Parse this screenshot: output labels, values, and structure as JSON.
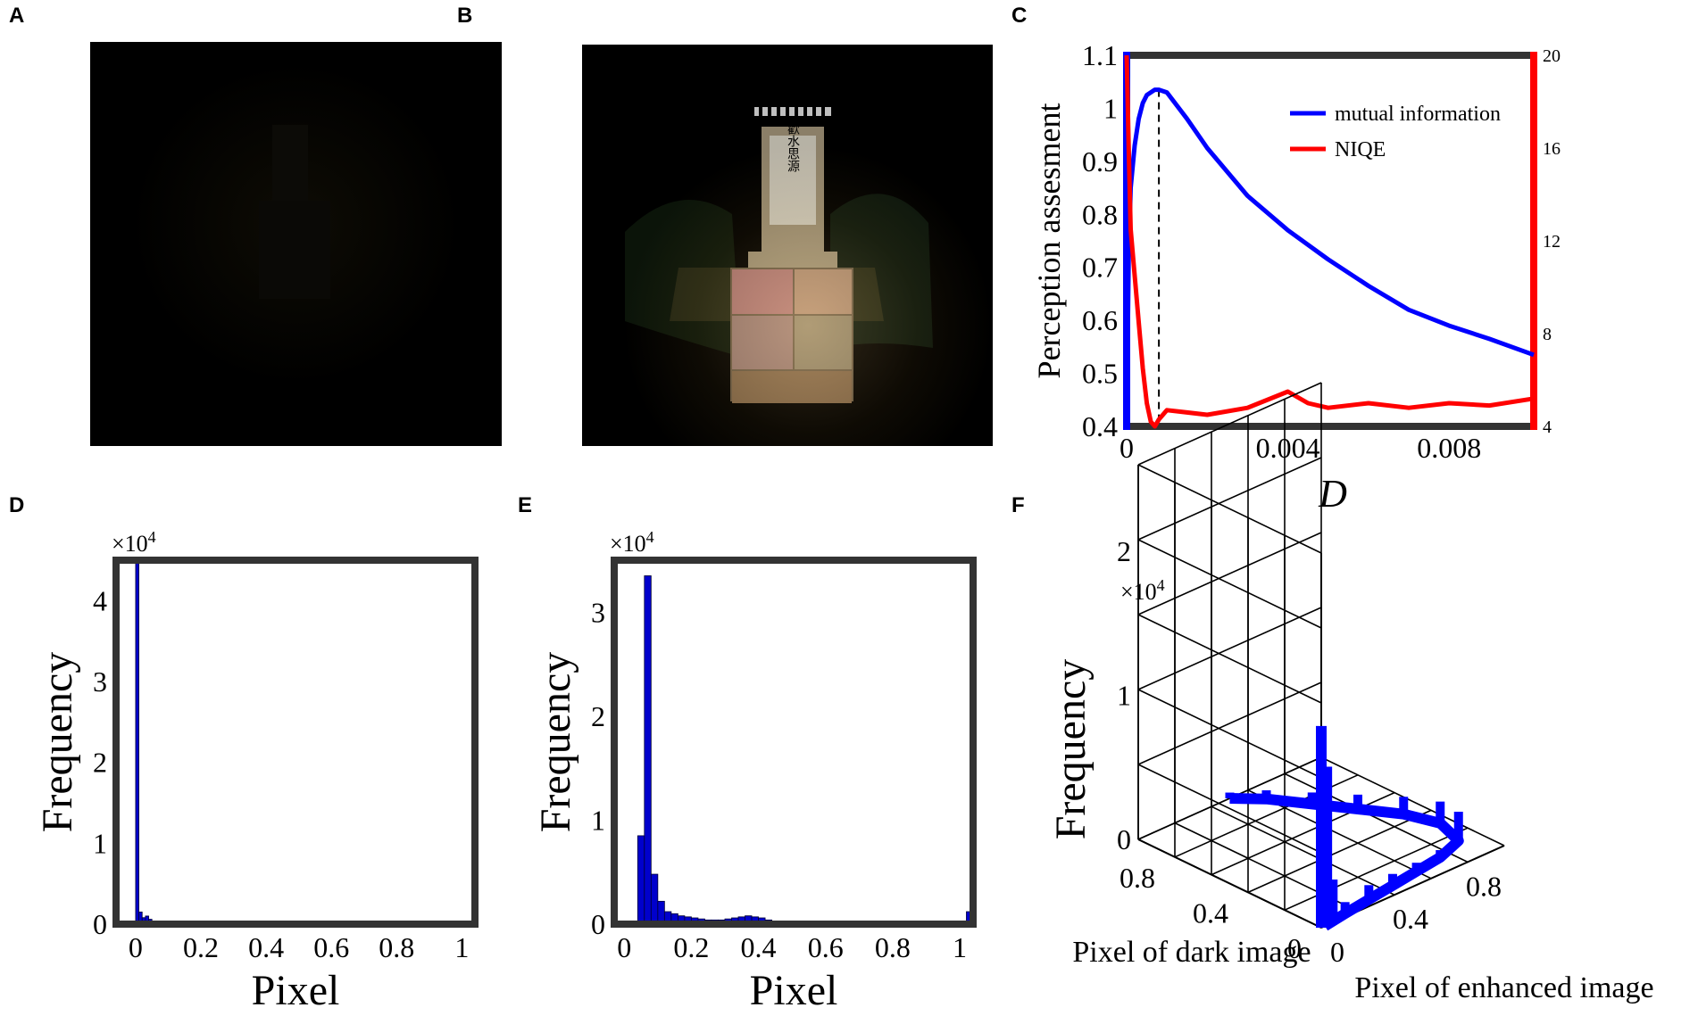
{
  "panels": {
    "a": "A",
    "b": "B",
    "c": "C",
    "d": "D",
    "e": "E",
    "f": "F"
  },
  "sign_text": "歡水思源",
  "chart_data": [
    {
      "id": "C",
      "type": "line",
      "title": "",
      "xlabel": "D",
      "ylabel": "Perception assesment",
      "xlim": [
        0,
        0.0101
      ],
      "ylim_left": [
        0.4,
        1.1
      ],
      "ylim_right": [
        4,
        20
      ],
      "xticks": [
        "0",
        "0.004",
        "0.008"
      ],
      "xtick_values": [
        0,
        0.004,
        0.008
      ],
      "yticks_left": [
        "0.4",
        "0.5",
        "0.6",
        "0.7",
        "0.8",
        "0.9",
        "1",
        "1.1"
      ],
      "ytick_left_values": [
        0.4,
        0.5,
        0.6,
        0.7,
        0.8,
        0.9,
        1.0,
        1.1
      ],
      "yticks_right": [
        "4",
        "8",
        "12",
        "16",
        "20"
      ],
      "ytick_right_values": [
        4,
        8,
        12,
        16,
        20
      ],
      "marker_x": 0.0008,
      "series": [
        {
          "name": "mutual information",
          "axis": "left",
          "color": "#0000ff",
          "x": [
            0,
            5e-05,
            0.0001,
            0.0002,
            0.0003,
            0.0004,
            0.0005,
            0.0006,
            0.0007,
            0.0008,
            0.001,
            0.0015,
            0.002,
            0.003,
            0.004,
            0.005,
            0.006,
            0.007,
            0.008,
            0.009,
            0.0101
          ],
          "y": [
            0.4,
            0.72,
            0.85,
            0.93,
            0.98,
            1.01,
            1.025,
            1.03,
            1.035,
            1.035,
            1.03,
            0.98,
            0.925,
            0.835,
            0.77,
            0.715,
            0.665,
            0.62,
            0.59,
            0.565,
            0.535
          ]
        },
        {
          "name": "NIQE",
          "axis": "right",
          "color": "#ff0000",
          "x": [
            0,
            5e-05,
            0.0001,
            0.0002,
            0.0003,
            0.0004,
            0.0005,
            0.0006,
            0.0007,
            0.0008,
            0.001,
            0.0015,
            0.002,
            0.003,
            0.004,
            0.0045,
            0.005,
            0.006,
            0.007,
            0.008,
            0.009,
            0.0101
          ],
          "y": [
            20,
            16,
            12.5,
            10.5,
            8.5,
            6.5,
            5.0,
            4.2,
            4.0,
            4.3,
            4.7,
            4.6,
            4.5,
            4.8,
            5.5,
            5.0,
            4.8,
            5.0,
            4.8,
            5.0,
            4.9,
            5.2
          ]
        }
      ]
    },
    {
      "id": "D",
      "type": "bar",
      "xlabel": "Pixel",
      "ylabel": "Frequency",
      "multiplier": "×10",
      "multiplier_exp": "4",
      "xlim": [
        -0.06,
        1.04
      ],
      "ylim": [
        0,
        4.5
      ],
      "xticks": [
        "0",
        "0.2",
        "0.4",
        "0.6",
        "0.8",
        "1"
      ],
      "xtick_values": [
        0,
        0.2,
        0.4,
        0.6,
        0.8,
        1
      ],
      "yticks": [
        "0",
        "1",
        "2",
        "3",
        "4"
      ],
      "ytick_values": [
        0,
        1,
        2,
        3,
        4
      ],
      "bin_width": 0.01,
      "x": [
        0.0,
        0.01,
        0.02,
        0.03,
        0.04,
        0.05
      ],
      "values": [
        4.5,
        0.15,
        0.08,
        0.1,
        0.06,
        0.03
      ]
    },
    {
      "id": "E",
      "type": "bar",
      "xlabel": "Pixel",
      "ylabel": "Frequency",
      "multiplier": "×10",
      "multiplier_exp": "4",
      "xlim": [
        -0.03,
        1.04
      ],
      "ylim": [
        0,
        3.5
      ],
      "xticks": [
        "0",
        "0.2",
        "0.4",
        "0.6",
        "0.8",
        "1"
      ],
      "xtick_values": [
        0,
        0.2,
        0.4,
        0.6,
        0.8,
        1
      ],
      "yticks": [
        "0",
        "1",
        "2",
        "3"
      ],
      "ytick_values": [
        0,
        1,
        2,
        3
      ],
      "bin_width": 0.02,
      "x": [
        0.04,
        0.06,
        0.08,
        0.1,
        0.12,
        0.14,
        0.16,
        0.18,
        0.2,
        0.22,
        0.24,
        0.26,
        0.28,
        0.3,
        0.32,
        0.34,
        0.36,
        0.38,
        0.4,
        0.42,
        0.44,
        0.46,
        0.48,
        0.5,
        1.02
      ],
      "values": [
        0.85,
        3.35,
        0.48,
        0.22,
        0.12,
        0.1,
        0.08,
        0.07,
        0.06,
        0.05,
        0.04,
        0.04,
        0.04,
        0.05,
        0.06,
        0.07,
        0.08,
        0.07,
        0.06,
        0.04,
        0.03,
        0.02,
        0.02,
        0.01,
        0.12
      ]
    },
    {
      "id": "F",
      "type": "bar3d",
      "xlabel": "Pixel of enhanced image",
      "ylabel": "Pixel of dark image",
      "zlabel": "Frequency",
      "multiplier": "×10",
      "multiplier_exp": "4",
      "zticks": [
        "0",
        "1",
        "2"
      ],
      "ztick_values": [
        0,
        1,
        2
      ],
      "xticks": [
        "0",
        "0.4",
        "0.8"
      ],
      "xtick_values": [
        0,
        0.4,
        0.8
      ],
      "yticks": [
        "0",
        "0.4",
        "0.8"
      ],
      "ytick_values": [
        0,
        0.4,
        0.8
      ],
      "bars": [
        {
          "x": 0.0,
          "y": 0.0,
          "z": 1.4
        },
        {
          "x": 0.03,
          "y": 0.0,
          "z": 1.1
        },
        {
          "x": 0.06,
          "y": 0.0,
          "z": 0.3
        }
      ],
      "ridge": {
        "x": [
          0.02,
          0.15,
          0.3,
          0.45,
          0.6,
          0.75,
          0.9,
          0.95,
          0.9,
          0.8,
          0.7,
          0.6,
          0.5
        ],
        "y": [
          0.0,
          0.02,
          0.04,
          0.06,
          0.08,
          0.1,
          0.15,
          0.3,
          0.45,
          0.6,
          0.75,
          0.9,
          1.0
        ],
        "z": [
          0.2,
          0.08,
          0.1,
          0.08,
          0.06,
          0.05,
          0.2,
          0.15,
          0.12,
          0.1,
          0.08,
          0.06,
          0.04
        ]
      }
    }
  ],
  "legend": {
    "items": [
      {
        "label": "mutual information",
        "color": "#0000ff"
      },
      {
        "label": "NIQE",
        "color": "#ff0000"
      }
    ]
  }
}
